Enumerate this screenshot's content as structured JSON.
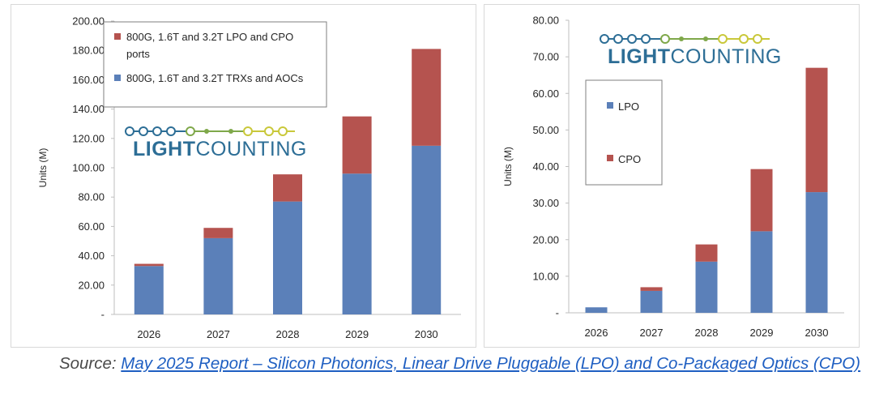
{
  "colors": {
    "lower": "#5b80b9",
    "upper": "#b5534f",
    "logo_blue": "#2d6e96",
    "logo_green": "#7fa84a",
    "logo_yellow": "#c9c83a"
  },
  "logo": {
    "light": "LIGHT",
    "counting": "COUNTING"
  },
  "chart_data": [
    {
      "type": "bar",
      "stacked": true,
      "categories": [
        "2026",
        "2027",
        "2028",
        "2029",
        "2030"
      ],
      "series": [
        {
          "name": "800G, 1.6T and 3.2T TRXs and AOCs",
          "values": [
            33,
            52,
            77,
            96,
            115
          ]
        },
        {
          "name": "800G, 1.6T and 3.2T LPO and CPO ports",
          "values": [
            1.5,
            7,
            18.5,
            39,
            66
          ]
        }
      ],
      "ylabel": "Units (M)",
      "ylim": [
        0,
        200
      ],
      "yticks": [
        "-",
        "20.00",
        "40.00",
        "60.00",
        "80.00",
        "100.00",
        "120.00",
        "140.00",
        "160.00",
        "180.00",
        "200.00"
      ],
      "legend": "top-left",
      "legend_labels": {
        "upper": [
          "800G, 1.6T and 3.2T LPO and CPO",
          "ports"
        ],
        "lower": [
          "800G, 1.6T and 3.2T TRXs and AOCs"
        ]
      }
    },
    {
      "type": "bar",
      "stacked": true,
      "categories": [
        "2026",
        "2027",
        "2028",
        "2029",
        "2030"
      ],
      "series": [
        {
          "name": "LPO",
          "values": [
            1.5,
            6,
            14,
            22.3,
            33
          ]
        },
        {
          "name": "CPO",
          "values": [
            0,
            1,
            4.7,
            17,
            34
          ]
        }
      ],
      "ylabel": "Units (M)",
      "ylim": [
        0,
        80
      ],
      "yticks": [
        "-",
        "10.00",
        "20.00",
        "30.00",
        "40.00",
        "50.00",
        "60.00",
        "70.00",
        "80.00"
      ],
      "legend": "top-left",
      "legend_labels": {
        "lower": "LPO",
        "upper": "CPO"
      }
    }
  ],
  "source": {
    "prefix": "Source: ",
    "link_text": "May 2025 Report – Silicon Photonics, Linear Drive Pluggable (LPO) and Co-Packaged Optics (CPO)"
  }
}
